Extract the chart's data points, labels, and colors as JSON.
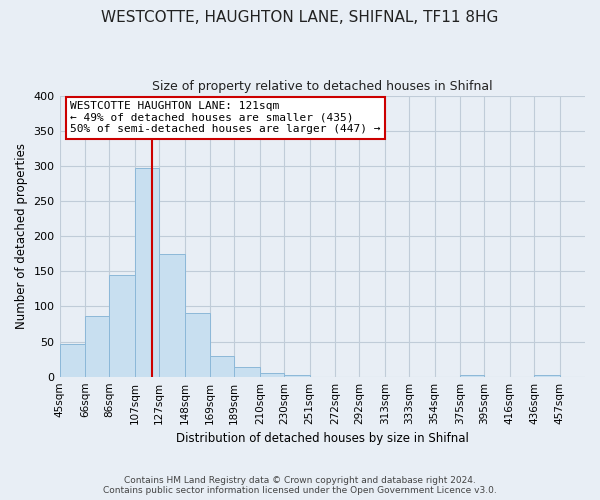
{
  "title": "WESTCOTTE, HAUGHTON LANE, SHIFNAL, TF11 8HG",
  "subtitle": "Size of property relative to detached houses in Shifnal",
  "xlabel": "Distribution of detached houses by size in Shifnal",
  "ylabel": "Number of detached properties",
  "bin_labels": [
    "45sqm",
    "66sqm",
    "86sqm",
    "107sqm",
    "127sqm",
    "148sqm",
    "169sqm",
    "189sqm",
    "210sqm",
    "230sqm",
    "251sqm",
    "272sqm",
    "292sqm",
    "313sqm",
    "333sqm",
    "354sqm",
    "375sqm",
    "395sqm",
    "416sqm",
    "436sqm",
    "457sqm"
  ],
  "bar_heights": [
    47,
    86,
    144,
    297,
    175,
    91,
    30,
    14,
    5,
    3,
    0,
    0,
    0,
    0,
    0,
    0,
    2,
    0,
    0,
    2,
    0
  ],
  "bar_color": "#c8dff0",
  "bar_edge_color": "#8cb8d8",
  "vline_x": 121,
  "vline_color": "#cc0000",
  "annotation_title": "WESTCOTTE HAUGHTON LANE: 121sqm",
  "annotation_line1": "← 49% of detached houses are smaller (435)",
  "annotation_line2": "50% of semi-detached houses are larger (447) →",
  "annotation_box_facecolor": "#ffffff",
  "annotation_box_edgecolor": "#cc0000",
  "ylim": [
    0,
    400
  ],
  "yticks": [
    0,
    50,
    100,
    150,
    200,
    250,
    300,
    350,
    400
  ],
  "footnote1": "Contains HM Land Registry data © Crown copyright and database right 2024.",
  "footnote2": "Contains public sector information licensed under the Open Government Licence v3.0.",
  "bg_color": "#e8eef5",
  "plot_bg_color": "#e8eef5",
  "grid_color": "#c0ccd8",
  "bin_edges": [
    45,
    66,
    86,
    107,
    127,
    148,
    169,
    189,
    210,
    230,
    251,
    272,
    292,
    313,
    333,
    354,
    375,
    395,
    416,
    436,
    457,
    478
  ]
}
